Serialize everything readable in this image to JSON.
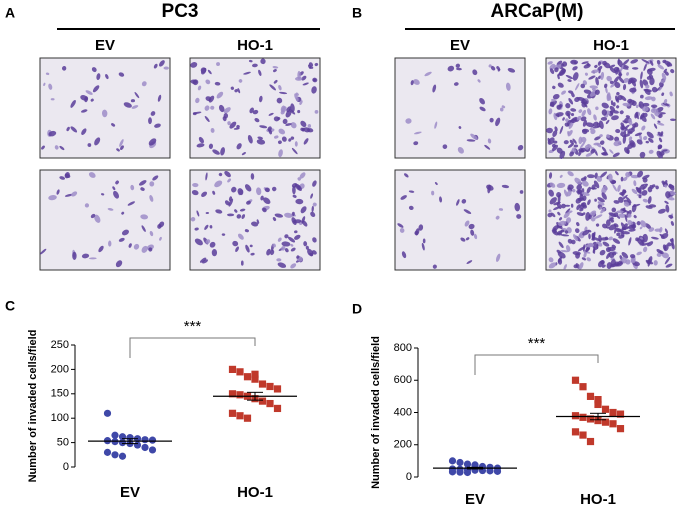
{
  "panels": [
    {
      "label": "A",
      "title": "PC3",
      "columns": [
        "EV",
        "HO-1"
      ],
      "density": [
        45,
        110
      ]
    },
    {
      "label": "B",
      "title": "ARCaP(M)",
      "columns": [
        "EV",
        "HO-1"
      ],
      "density": [
        35,
        320
      ]
    }
  ],
  "chart_data": [
    {
      "type": "dot",
      "label": "C",
      "ylabel": "Number of invaded cells/field",
      "significance": "***",
      "categories": [
        "EV",
        "HO-1"
      ],
      "colors": [
        "#3f48a8",
        "#c0392b"
      ],
      "points": [
        [
          110,
          65,
          62,
          60,
          58,
          56,
          55,
          54,
          52,
          50,
          48,
          45,
          40,
          35,
          30,
          25,
          22,
          60
        ],
        [
          200,
          195,
          185,
          180,
          170,
          165,
          160,
          150,
          148,
          145,
          140,
          135,
          130,
          120,
          110,
          105,
          100,
          190
        ]
      ],
      "means": [
        53,
        145
      ],
      "errors": [
        5,
        8
      ],
      "ylim": [
        0,
        250
      ],
      "yticks": [
        0,
        50,
        100,
        150,
        200,
        250
      ]
    },
    {
      "type": "dot",
      "label": "D",
      "ylabel": "Number of invaded cells/field",
      "significance": "***",
      "categories": [
        "EV",
        "HO-1"
      ],
      "colors": [
        "#3f48a8",
        "#c0392b"
      ],
      "points": [
        [
          100,
          90,
          80,
          70,
          65,
          60,
          55,
          50,
          48,
          45,
          42,
          40,
          38,
          35,
          32,
          30,
          28,
          75
        ],
        [
          600,
          560,
          500,
          480,
          420,
          400,
          390,
          380,
          370,
          360,
          350,
          340,
          330,
          300,
          280,
          260,
          220,
          450
        ]
      ],
      "means": [
        55,
        375
      ],
      "errors": [
        5,
        20
      ],
      "ylim": [
        0,
        800
      ],
      "yticks": [
        0,
        200,
        400,
        600,
        800
      ]
    }
  ]
}
